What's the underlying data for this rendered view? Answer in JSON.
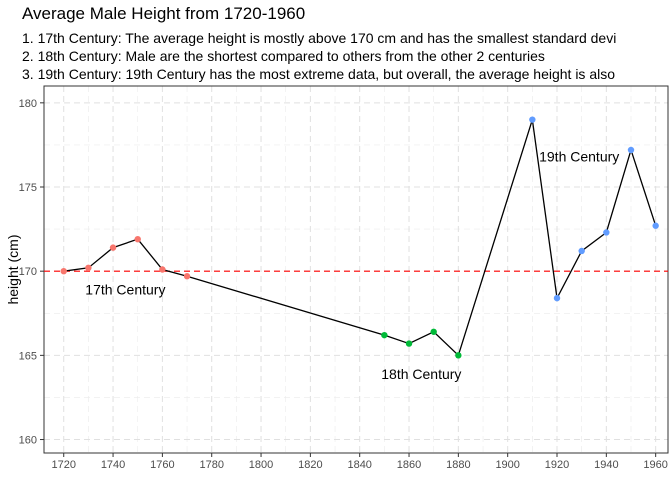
{
  "chart_data": {
    "type": "line",
    "title": "Average Male Height from 1720-1960",
    "subtitle_lines": [
      "1. 17th Century: The average height is mostly above 170 cm and has the smallest standard devi",
      "2. 18th Century: Male are the shortest compared to others from the other 2 centuries",
      "3. 19th Century: 19th Century has the most extreme data, but overall, the average height is also"
    ],
    "xlabel": "",
    "ylabel": "height (cm)",
    "xlim": [
      1712,
      1965
    ],
    "ylim": [
      159.2,
      181.0
    ],
    "x_ticks": [
      1720,
      1740,
      1760,
      1780,
      1800,
      1820,
      1840,
      1860,
      1880,
      1900,
      1920,
      1940,
      1960
    ],
    "y_ticks": [
      160,
      165,
      170,
      175,
      180
    ],
    "grid": true,
    "reference_line": {
      "y": 170,
      "color": "#ff0000",
      "style": "dashed"
    },
    "line_color": "#000000",
    "series": [
      {
        "color": "#f8766d",
        "points": [
          [
            1720,
            170.0
          ],
          [
            1730,
            170.2
          ],
          [
            1740,
            171.4
          ],
          [
            1750,
            171.9
          ],
          [
            1760,
            170.1
          ],
          [
            1770,
            169.7
          ]
        ]
      },
      {
        "color": "#00ba38",
        "points": [
          [
            1850,
            166.2
          ],
          [
            1860,
            165.7
          ],
          [
            1870,
            166.4
          ],
          [
            1880,
            165.0
          ]
        ]
      },
      {
        "color": "#619cff",
        "points": [
          [
            1910,
            179.0
          ],
          [
            1920,
            168.4
          ],
          [
            1930,
            171.2
          ],
          [
            1940,
            172.3
          ],
          [
            1950,
            177.2
          ],
          [
            1960,
            172.7
          ]
        ]
      }
    ],
    "annotations": [
      {
        "text": "17th Century",
        "x": 1745,
        "y": 168.9
      },
      {
        "text": "18th Century",
        "x": 1865,
        "y": 163.9
      },
      {
        "text": "19th Century",
        "x": 1929,
        "y": 176.8
      }
    ]
  }
}
